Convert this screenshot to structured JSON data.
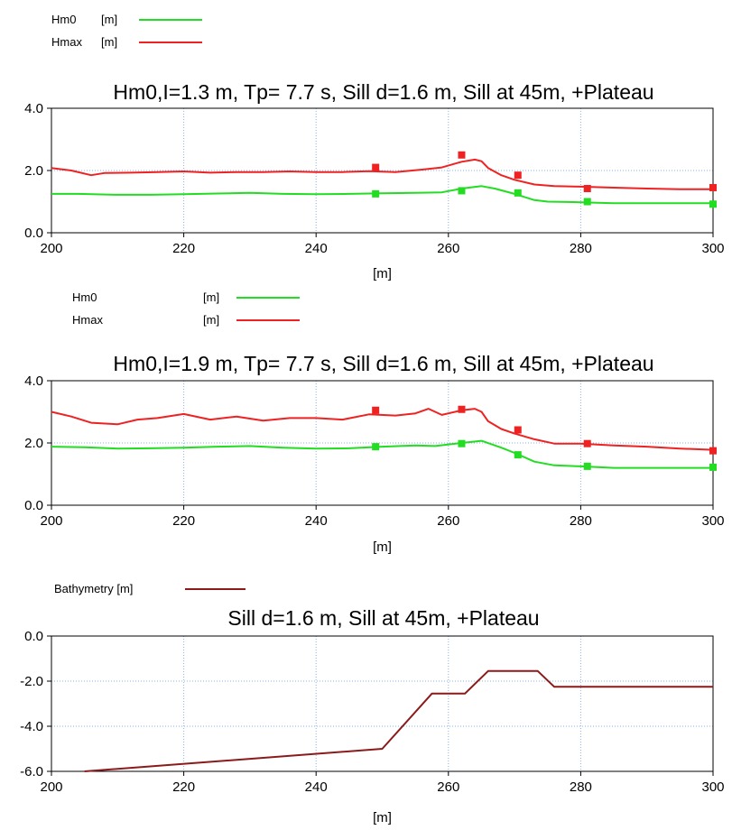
{
  "chart_data": [
    {
      "type": "line",
      "title": "Hm0,I=1.3 m, Tp= 7.7 s, Sill d=1.6 m, Sill at 45m, +Plateau",
      "xlabel": "[m]",
      "ylabel": "",
      "xlim": [
        200,
        300
      ],
      "ylim": [
        0,
        4
      ],
      "xticks": [
        "200",
        "220",
        "240",
        "260",
        "280",
        "300"
      ],
      "yticks": [
        "0.0",
        "2.0",
        "4.0"
      ],
      "grid": true,
      "legend_position": "top-left, above title",
      "legend": [
        {
          "name": "Hm0",
          "unit": "[m]",
          "color": "#22dd22"
        },
        {
          "name": "Hmax",
          "unit": "[m]",
          "color": "#ee2222"
        }
      ],
      "series": [
        {
          "name": "Hm0",
          "color": "#22dd22",
          "x": [
            200,
            204,
            210,
            215,
            220,
            225,
            230,
            235,
            240,
            245,
            250,
            255,
            259,
            262,
            265,
            267,
            270,
            273,
            275,
            280,
            285,
            290,
            295,
            300
          ],
          "y": [
            1.25,
            1.25,
            1.22,
            1.22,
            1.24,
            1.26,
            1.28,
            1.25,
            1.24,
            1.25,
            1.27,
            1.28,
            1.3,
            1.42,
            1.5,
            1.42,
            1.25,
            1.05,
            1.0,
            0.98,
            0.95,
            0.95,
            0.95,
            0.95
          ]
        },
        {
          "name": "Hmax",
          "color": "#ee2222",
          "x": [
            200,
            203,
            206,
            208,
            212,
            216,
            220,
            224,
            228,
            232,
            236,
            240,
            244,
            248,
            252,
            256,
            259,
            262,
            264,
            265,
            266,
            268,
            270,
            273,
            276,
            280,
            285,
            290,
            295,
            300
          ],
          "y": [
            2.08,
            2.0,
            1.85,
            1.92,
            1.93,
            1.95,
            1.97,
            1.93,
            1.95,
            1.95,
            1.97,
            1.95,
            1.95,
            1.98,
            1.95,
            2.03,
            2.1,
            2.28,
            2.35,
            2.3,
            2.08,
            1.85,
            1.7,
            1.55,
            1.5,
            1.48,
            1.45,
            1.42,
            1.4,
            1.4
          ]
        }
      ],
      "markers": [
        {
          "series": "Hm0",
          "color": "#22dd22",
          "points": [
            [
              249,
              1.25
            ],
            [
              262,
              1.35
            ],
            [
              270.5,
              1.28
            ],
            [
              281,
              1.0
            ],
            [
              300,
              0.92
            ]
          ]
        },
        {
          "series": "Hmax",
          "color": "#ee2222",
          "points": [
            [
              249,
              2.1
            ],
            [
              262,
              2.5
            ],
            [
              270.5,
              1.85
            ],
            [
              281,
              1.42
            ],
            [
              300,
              1.45
            ]
          ]
        }
      ]
    },
    {
      "type": "line",
      "title": "Hm0,I=1.9 m, Tp= 7.7 s, Sill d=1.6 m, Sill at 45m, +Plateau",
      "xlabel": "[m]",
      "ylabel": "",
      "xlim": [
        200,
        300
      ],
      "ylim": [
        0,
        4
      ],
      "xticks": [
        "200",
        "220",
        "240",
        "260",
        "280",
        "300"
      ],
      "yticks": [
        "0.0",
        "2.0",
        "4.0"
      ],
      "grid": true,
      "legend_position": "top-left, above title",
      "legend": [
        {
          "name": "Hm0",
          "unit": "[m]",
          "color": "#22dd22"
        },
        {
          "name": "Hmax",
          "unit": "[m]",
          "color": "#ee2222"
        }
      ],
      "series": [
        {
          "name": "Hm0",
          "color": "#22dd22",
          "x": [
            200,
            205,
            210,
            215,
            220,
            225,
            230,
            235,
            240,
            245,
            250,
            255,
            258,
            262,
            265,
            268,
            270,
            273,
            276,
            280,
            285,
            290,
            295,
            300
          ],
          "y": [
            1.88,
            1.86,
            1.82,
            1.83,
            1.85,
            1.88,
            1.9,
            1.85,
            1.82,
            1.83,
            1.88,
            1.92,
            1.9,
            2.0,
            2.07,
            1.85,
            1.68,
            1.4,
            1.28,
            1.25,
            1.2,
            1.2,
            1.2,
            1.2
          ]
        },
        {
          "name": "Hmax",
          "color": "#ee2222",
          "x": [
            200,
            203,
            206,
            210,
            213,
            216,
            220,
            224,
            228,
            232,
            236,
            240,
            244,
            248,
            252,
            255,
            257,
            259,
            262,
            264,
            265,
            266,
            268,
            270,
            273,
            276,
            280,
            285,
            290,
            295,
            300
          ],
          "y": [
            3.0,
            2.85,
            2.65,
            2.6,
            2.75,
            2.8,
            2.93,
            2.75,
            2.85,
            2.72,
            2.8,
            2.8,
            2.75,
            2.92,
            2.88,
            2.95,
            3.1,
            2.9,
            3.05,
            3.1,
            3.0,
            2.7,
            2.45,
            2.3,
            2.12,
            1.98,
            1.98,
            1.92,
            1.88,
            1.82,
            1.78
          ]
        }
      ],
      "markers": [
        {
          "series": "Hm0",
          "color": "#22dd22",
          "points": [
            [
              249,
              1.88
            ],
            [
              262,
              1.98
            ],
            [
              270.5,
              1.62
            ],
            [
              281,
              1.25
            ],
            [
              300,
              1.22
            ]
          ]
        },
        {
          "series": "Hmax",
          "color": "#ee2222",
          "points": [
            [
              249,
              3.05
            ],
            [
              262,
              3.08
            ],
            [
              270.5,
              2.42
            ],
            [
              281,
              1.98
            ],
            [
              300,
              1.75
            ]
          ]
        }
      ]
    },
    {
      "type": "line",
      "title": "Sill d=1.6 m, Sill at 45m, +Plateau",
      "xlabel": "[m]",
      "ylabel": "",
      "xlim": [
        200,
        300
      ],
      "ylim": [
        -6,
        0
      ],
      "xticks": [
        "200",
        "220",
        "240",
        "260",
        "280",
        "300"
      ],
      "yticks": [
        "-6.0",
        "-4.0",
        "-2.0",
        "0.0"
      ],
      "grid": true,
      "legend_position": "top-left, above title",
      "legend": [
        {
          "name": "Bathymetry",
          "unit": "[m]",
          "color": "#8b1a1a"
        }
      ],
      "series": [
        {
          "name": "Bathymetry",
          "color": "#8b1a1a",
          "x": [
            205,
            250,
            257.5,
            262.5,
            266,
            273.5,
            276,
            300
          ],
          "y": [
            -6.0,
            -5.0,
            -2.55,
            -2.55,
            -1.55,
            -1.55,
            -2.25,
            -2.25
          ]
        }
      ]
    }
  ]
}
